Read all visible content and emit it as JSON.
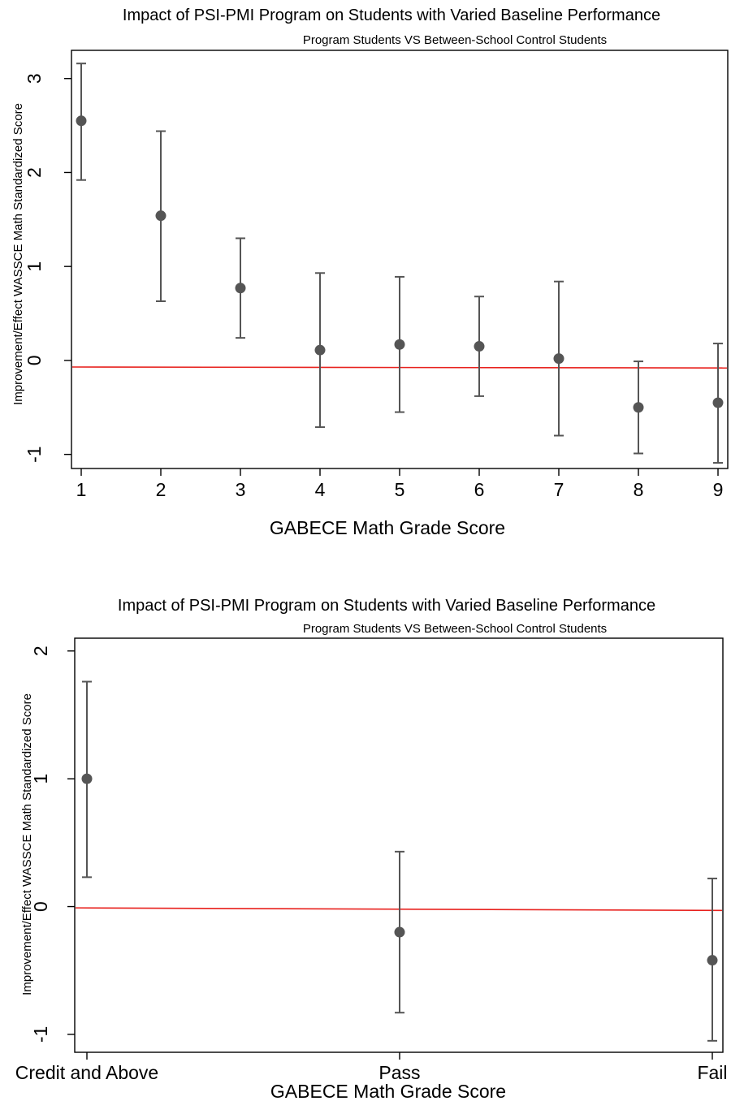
{
  "chart_data": [
    {
      "type": "scatter",
      "title": "Impact of PSI-PMI Program on Students with Varied Baseline Performance",
      "subtitle": "Program Students VS Between-School Control Students",
      "xlabel": "GABECE Math Grade Score",
      "ylabel": "Improvement/Effect WASSCE Math Standardized Score",
      "categories": [
        "1",
        "2",
        "3",
        "4",
        "5",
        "6",
        "7",
        "8",
        "9"
      ],
      "yticks": [
        "-1",
        "0",
        "1",
        "2",
        "3"
      ],
      "ylim": [
        -1.15,
        3.3
      ],
      "series": [
        {
          "estimate": [
            2.55,
            1.54,
            0.77,
            0.11,
            0.17,
            0.15,
            0.02,
            -0.5,
            -0.45
          ],
          "ci_low": [
            1.92,
            0.63,
            0.24,
            -0.71,
            -0.55,
            -0.38,
            -0.8,
            -0.99,
            -1.09
          ],
          "ci_high": [
            3.16,
            2.44,
            1.3,
            0.93,
            0.89,
            0.68,
            0.84,
            -0.01,
            0.18
          ]
        }
      ],
      "reference_line": {
        "y_start": -0.07,
        "y_end": -0.08,
        "color": "#e8211d"
      },
      "marker_color": "#555555",
      "grid": false
    },
    {
      "type": "scatter",
      "title": "Impact of PSI-PMI Program on Students with Varied Baseline Performance",
      "subtitle": "Program Students VS Between-School Control Students",
      "xlabel": "GABECE Math Grade Score",
      "ylabel": "Improvement/Effect WASSCE Math Standardized Score",
      "categories": [
        "Credit and Above",
        "Pass",
        "Fail"
      ],
      "yticks": [
        "-1",
        "0",
        "1",
        "2"
      ],
      "ylim": [
        -1.14,
        2.1
      ],
      "series": [
        {
          "estimate": [
            1.0,
            -0.2,
            -0.42
          ],
          "ci_low": [
            0.23,
            -0.83,
            -1.05
          ],
          "ci_high": [
            1.76,
            0.43,
            0.22
          ]
        }
      ],
      "reference_line": {
        "y_start": -0.01,
        "y_end": -0.03,
        "color": "#e8211d"
      },
      "marker_color": "#555555",
      "grid": false
    }
  ]
}
